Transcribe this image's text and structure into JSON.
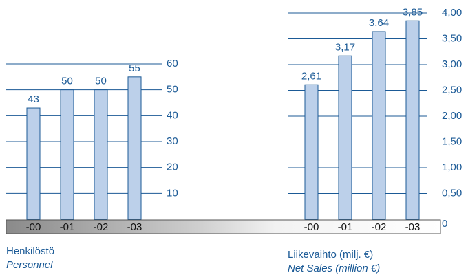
{
  "colors": {
    "accent": "#1b5a96",
    "bar_fill": "#bcd0ea",
    "bar_stroke": "#1b5a96",
    "baseline_dark": "#8a8a8a",
    "baseline_light": "#f2f2f2"
  },
  "chart_data": [
    {
      "type": "bar",
      "title": "Henkilöstö",
      "subtitle": "Personnel",
      "categories": [
        "-00",
        "-01",
        "-02",
        "-03"
      ],
      "values": [
        43,
        50,
        50,
        55
      ],
      "value_labels": [
        "43",
        "50",
        "50",
        "55"
      ],
      "yticks": [
        10,
        20,
        30,
        40,
        50,
        60
      ],
      "ytick_labels": [
        "10",
        "20",
        "30",
        "40",
        "50",
        "60"
      ],
      "ylim": [
        0,
        60
      ],
      "grid": true,
      "axis_side": "right"
    },
    {
      "type": "bar",
      "title": "Liikevaihto (milj. €)",
      "subtitle": "Net Sales (million €)",
      "categories": [
        "-00",
        "-01",
        "-02",
        "-03"
      ],
      "values": [
        2.61,
        3.17,
        3.64,
        3.85
      ],
      "value_labels": [
        "2,61",
        "3,17",
        "3,64",
        "3,85"
      ],
      "yticks": [
        0,
        0.5,
        1.0,
        1.5,
        2.0,
        2.5,
        3.0,
        3.5,
        4.0
      ],
      "ytick_labels": [
        "0",
        "0,50",
        "1,00",
        "1,50",
        "2,00",
        "2,50",
        "3,00",
        "3,50",
        "4,00"
      ],
      "ylim": [
        0,
        4
      ],
      "grid": true,
      "axis_side": "right"
    }
  ]
}
